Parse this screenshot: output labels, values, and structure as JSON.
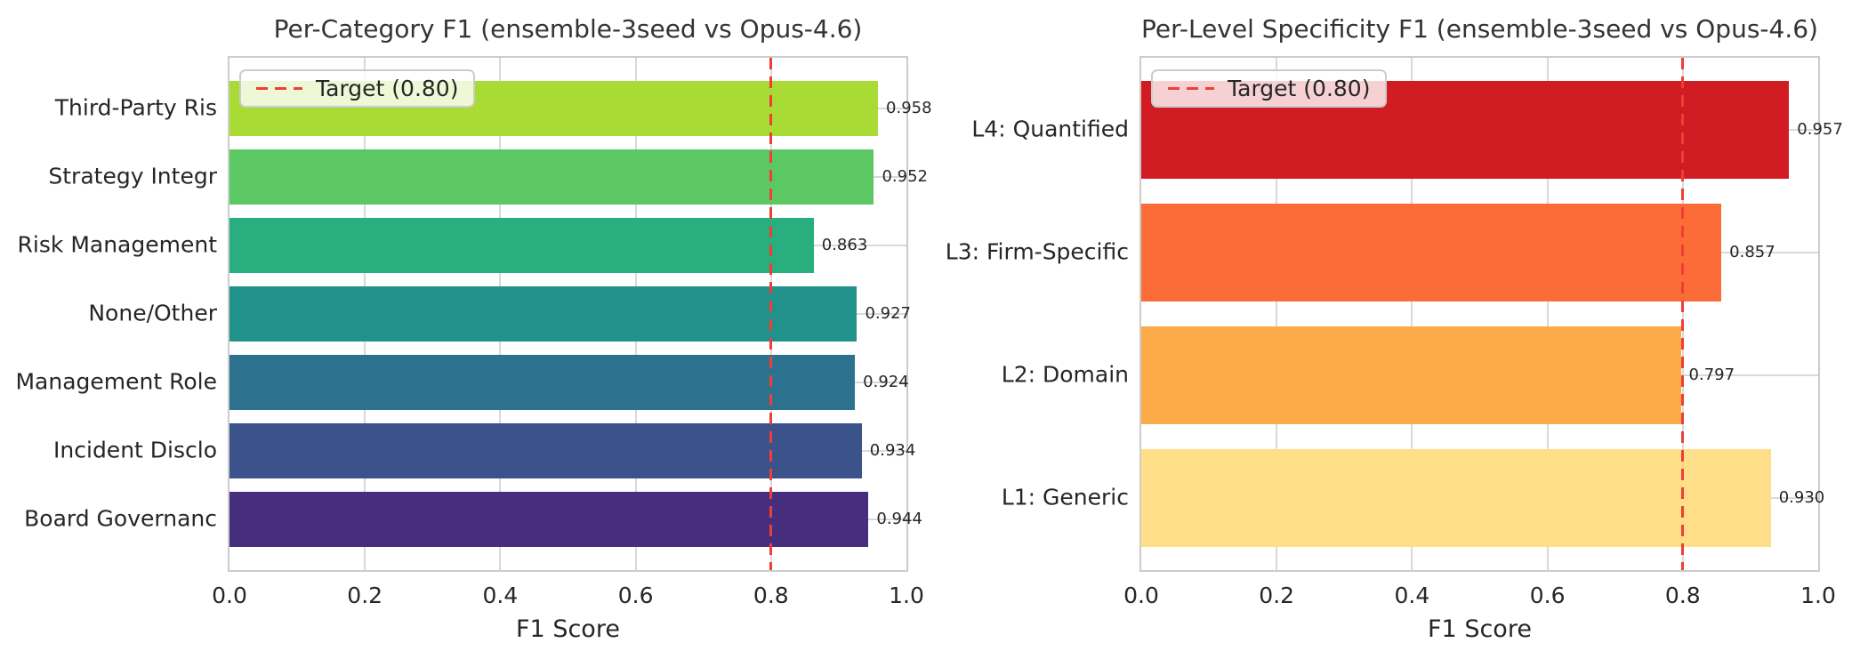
{
  "figure": {
    "background": "#ffffff",
    "text_color": "#262626",
    "grid_color": "#d9d9d9",
    "spine_color": "#cccccc"
  },
  "chart_data": [
    {
      "type": "bar",
      "orientation": "horizontal",
      "title": "Per-Category F1 (ensemble-3seed vs Opus-4.6)",
      "xlabel": "F1 Score",
      "xlim": [
        0.0,
        1.0
      ],
      "xticks": [
        0.0,
        0.2,
        0.4,
        0.6,
        0.8,
        1.0
      ],
      "xtick_labels": [
        "0.0",
        "0.2",
        "0.4",
        "0.6",
        "0.8",
        "1.0"
      ],
      "grid": true,
      "legend_position": "upper left",
      "categories": [
        "Third-Party Ris",
        "Strategy Integr",
        "Risk Management",
        "None/Other",
        "Management Role",
        "Incident Disclo",
        "Board Governanc"
      ],
      "values": [
        0.958,
        0.952,
        0.863,
        0.927,
        0.924,
        0.934,
        0.944
      ],
      "value_labels": [
        "0.958",
        "0.952",
        "0.863",
        "0.927",
        "0.924",
        "0.934",
        "0.944"
      ],
      "bar_colors": [
        "#a8db34",
        "#5cc863",
        "#29af7f",
        "#21918c",
        "#2c718e",
        "#3c528b",
        "#462e7d"
      ],
      "target_line": {
        "value": 0.8,
        "label": "Target (0.80)",
        "color": "#ef3e36",
        "style": "dashed"
      }
    },
    {
      "type": "bar",
      "orientation": "horizontal",
      "title": "Per-Level Specificity F1 (ensemble-3seed vs Opus-4.6)",
      "xlabel": "F1 Score",
      "xlim": [
        0.0,
        1.0
      ],
      "xticks": [
        0.0,
        0.2,
        0.4,
        0.6,
        0.8,
        1.0
      ],
      "xtick_labels": [
        "0.0",
        "0.2",
        "0.4",
        "0.6",
        "0.8",
        "1.0"
      ],
      "grid": true,
      "legend_position": "upper left",
      "categories": [
        "L4: Quantified",
        "L3: Firm-Specific",
        "L2: Domain",
        "L1: Generic"
      ],
      "values": [
        0.957,
        0.857,
        0.797,
        0.93
      ],
      "value_labels": [
        "0.957",
        "0.857",
        "0.797",
        "0.930"
      ],
      "bar_colors": [
        "#d11c24",
        "#fc6c38",
        "#fdaa49",
        "#fede89"
      ],
      "target_line": {
        "value": 0.8,
        "label": "Target (0.80)",
        "color": "#ef3e36",
        "style": "dashed"
      }
    }
  ]
}
